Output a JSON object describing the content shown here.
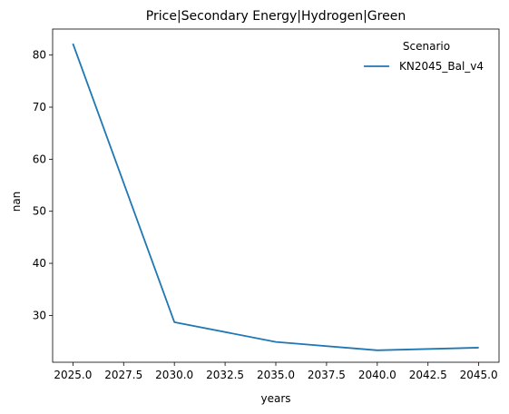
{
  "chart_data": {
    "type": "line",
    "title": "Price|Secondary Energy|Hydrogen|Green",
    "xlabel": "years",
    "ylabel": "nan",
    "x": [
      2025,
      2030,
      2035,
      2040,
      2045
    ],
    "series": [
      {
        "name": "KN2045_Bal_v4",
        "values": [
          82.2,
          28.7,
          24.9,
          23.3,
          23.8
        ],
        "color": "#1f77b4"
      }
    ],
    "xlim": [
      2024.0,
      2046.0
    ],
    "ylim": [
      21.0,
      85.0
    ],
    "xticks": [
      2025.0,
      2027.5,
      2030.0,
      2032.5,
      2035.0,
      2037.5,
      2040.0,
      2042.5,
      2045.0
    ],
    "xtick_labels": [
      "2025.0",
      "2027.5",
      "2030.0",
      "2032.5",
      "2035.0",
      "2037.5",
      "2040.0",
      "2042.5",
      "2045.0"
    ],
    "yticks": [
      30,
      40,
      50,
      60,
      70,
      80
    ],
    "ytick_labels": [
      "30",
      "40",
      "50",
      "60",
      "70",
      "80"
    ],
    "legend": {
      "title": "Scenario",
      "placement": "top-right"
    },
    "grid": false
  }
}
